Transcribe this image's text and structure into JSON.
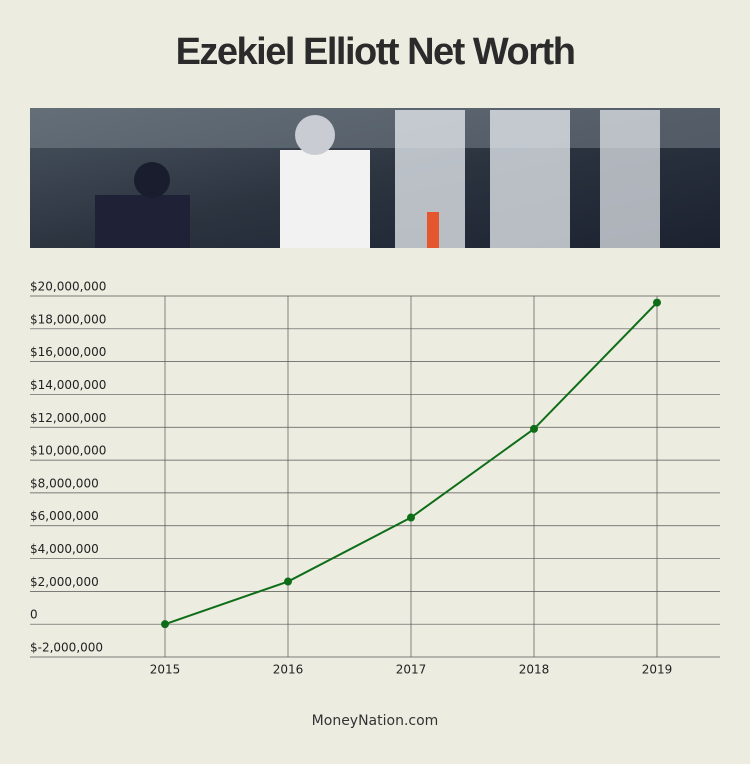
{
  "chart_data": {
    "type": "line",
    "title": "Ezekiel Elliott Net Worth",
    "categories": [
      "2015",
      "2016",
      "2017",
      "2018",
      "2019"
    ],
    "series": [
      {
        "name": "Net Worth",
        "color": "#0e6e18",
        "values": [
          0,
          2600000,
          6500000,
          11900000,
          19600000
        ]
      }
    ],
    "ylim": [
      -2000000,
      20000000
    ],
    "yticks": [
      {
        "value": -2000000,
        "label": "$-2,000,000"
      },
      0,
      {
        "value": 2000000,
        "label": "$2,000,000"
      },
      {
        "value": 4000000,
        "label": "$4,000,000"
      },
      {
        "value": 6000000,
        "label": "$6,000,000"
      },
      {
        "value": 8000000,
        "label": "$8,000,000"
      },
      {
        "value": 10000000,
        "label": "$10,000,000"
      },
      {
        "value": 12000000,
        "label": "$12,000,000"
      },
      {
        "value": 14000000,
        "label": "$14,000,000"
      },
      {
        "value": 16000000,
        "label": "$16,000,000"
      },
      {
        "value": 18000000,
        "label": "$18,000,000"
      },
      {
        "value": 20000000,
        "label": "$20,000,000"
      }
    ],
    "grid": true,
    "source": "MoneyNation.com"
  }
}
